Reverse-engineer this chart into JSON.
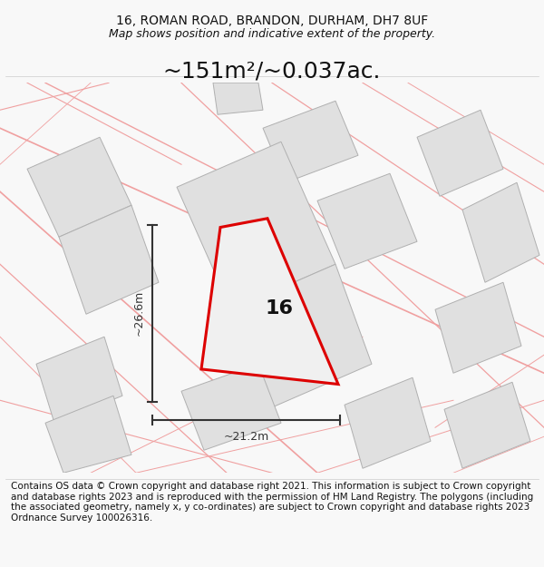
{
  "title_line1": "16, ROMAN ROAD, BRANDON, DURHAM, DH7 8UF",
  "title_line2": "Map shows position and indicative extent of the property.",
  "area_text": "~151m²/~0.037ac.",
  "dim_width": "~21.2m",
  "dim_height": "~26.6m",
  "plot_label": "16",
  "footer_text": "Contains OS data © Crown copyright and database right 2021. This information is subject to Crown copyright and database rights 2023 and is reproduced with the permission of HM Land Registry. The polygons (including the associated geometry, namely x, y co-ordinates) are subject to Crown copyright and database rights 2023 Ordnance Survey 100026316.",
  "bg_color": "#f8f8f8",
  "plot_fill": "#e8e8e8",
  "plot_outline": "#dd0000",
  "bldg_fill": "#e0e0e0",
  "bldg_outline": "#b0b0b0",
  "road_color": "#f0a0a0",
  "title_fontsize": 10,
  "subtitle_fontsize": 9,
  "area_fontsize": 18,
  "label_fontsize": 16,
  "dim_fontsize": 9,
  "footer_fontsize": 7.5
}
